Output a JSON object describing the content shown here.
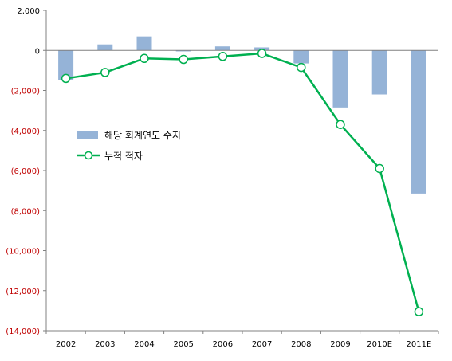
{
  "chart_data": {
    "type": "bar",
    "title": "",
    "xlabel": "",
    "ylabel": "",
    "categories": [
      "2002",
      "2003",
      "2004",
      "2005",
      "2006",
      "2007",
      "2008",
      "2009",
      "2010E",
      "2011E"
    ],
    "ylim": [
      -14000,
      2000
    ],
    "yticks": [
      2000,
      0,
      -2000,
      -4000,
      -6000,
      -8000,
      -10000,
      -12000,
      -14000
    ],
    "ytick_labels": [
      "2,000",
      "0",
      "(2,000)",
      "(4,000)",
      "(6,000)",
      "(8,000)",
      "(10,000)",
      "(12,000)",
      "(14,000)"
    ],
    "grid": false,
    "legend_position": "left",
    "series": [
      {
        "name": "해당 회계연도 수지",
        "type": "bar",
        "color": "#95b3d7",
        "values": [
          -1500,
          300,
          700,
          -50,
          200,
          150,
          -650,
          -2850,
          -2200,
          -7150
        ]
      },
      {
        "name": "누적 적자",
        "type": "line",
        "color": "#00b050",
        "marker": "open-circle",
        "values": [
          -1400,
          -1100,
          -400,
          -450,
          -300,
          -150,
          -850,
          -3700,
          -5900,
          -13050
        ]
      }
    ],
    "colors": {
      "positive_tick": "#000000",
      "negative_tick": "#c00000",
      "axis": "#808080"
    }
  }
}
